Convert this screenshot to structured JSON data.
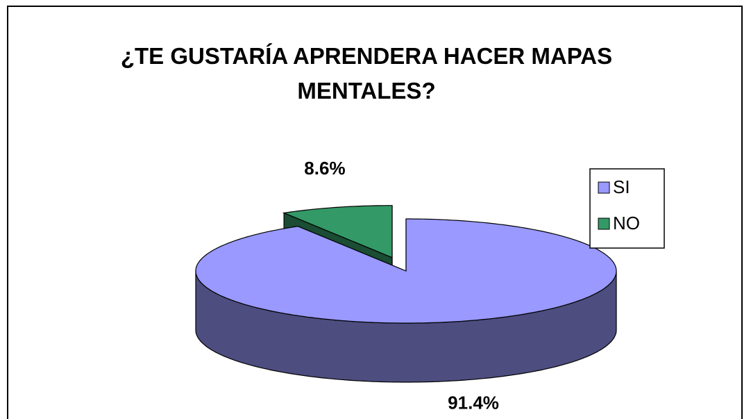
{
  "chart_data": {
    "type": "pie3d",
    "title": "¿TE GUSTARÍA APRENDERA HACER MAPAS MENTALES?",
    "categories": [
      "SI",
      "NO"
    ],
    "values": [
      91.4,
      8.6
    ],
    "value_labels": [
      "91.4%",
      "8.6%"
    ],
    "colors": [
      "#9999ff",
      "#339966"
    ],
    "legend": "right"
  }
}
